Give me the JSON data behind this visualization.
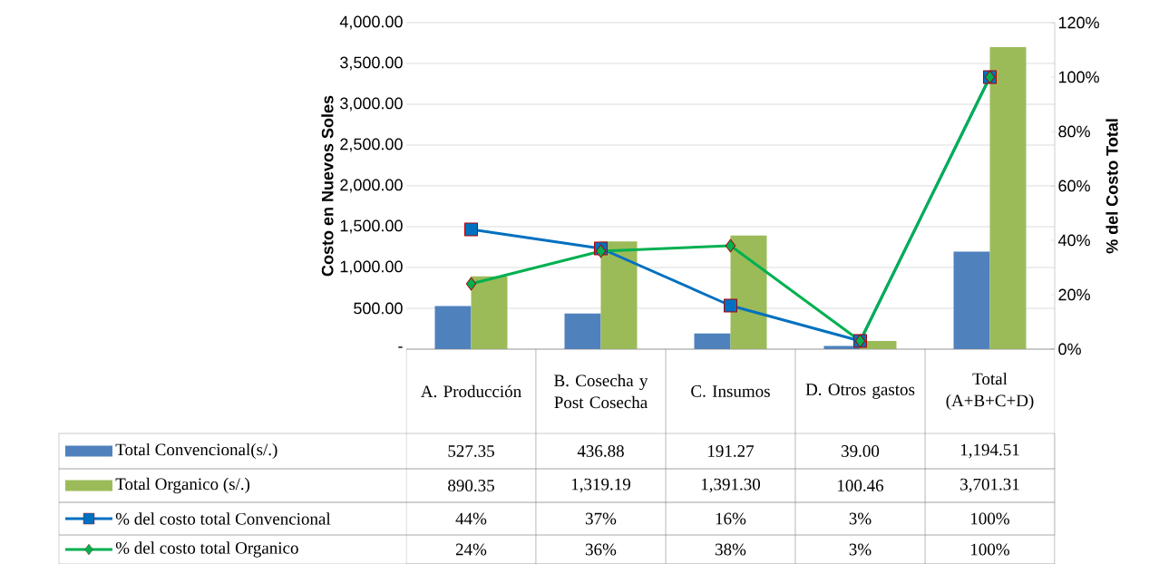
{
  "chart_data": {
    "type": "bar",
    "ylabel": "Costo en Nuevos Soles",
    "y2label": "% del Costo Total",
    "categories": [
      "A. Producción",
      "B. Cosecha y Post Cosecha",
      "C. Insumos",
      "D. Otros gastos",
      "Total (A+B+C+D)"
    ],
    "series": [
      {
        "name": "Total  Convencional(s/.)",
        "color": "#4f81bd",
        "values": [
          527.35,
          436.88,
          191.27,
          39.0,
          1194.51
        ],
        "value_labels": [
          "527.35",
          "436.88",
          "191.27",
          "39.00",
          "1,194.51"
        ]
      },
      {
        "name": "Total Organico  (s/.)",
        "color": "#9bbb59",
        "values": [
          890.35,
          1319.19,
          1391.3,
          100.46,
          3701.31
        ],
        "value_labels": [
          "890.35",
          "1,319.19",
          "1,391.30",
          "100.46",
          "3,701.31"
        ]
      },
      {
        "name": "% del costo total Convencional",
        "type": "line",
        "axis": "y2",
        "marker": "square",
        "color": "#0070c0",
        "values": [
          44,
          37,
          16,
          3,
          100
        ],
        "value_labels": [
          "44%",
          "37%",
          "16%",
          "3%",
          "100%"
        ]
      },
      {
        "name": "% del costo total Organico",
        "type": "line",
        "axis": "y2",
        "marker": "diamond",
        "color": "#00b050",
        "values": [
          24,
          36,
          38,
          3,
          100
        ],
        "value_labels": [
          "24%",
          "36%",
          "38%",
          "3%",
          "100%"
        ]
      }
    ],
    "ylim": [
      0,
      4000
    ],
    "yticks": [
      {
        "value": 0,
        "label": "-"
      },
      {
        "value": 500,
        "label": "500.00"
      },
      {
        "value": 1000,
        "label": "1,000.00"
      },
      {
        "value": 1500,
        "label": "1,500.00"
      },
      {
        "value": 2000,
        "label": "2,000.00"
      },
      {
        "value": 2500,
        "label": "2,500.00"
      },
      {
        "value": 3000,
        "label": "3,000.00"
      },
      {
        "value": 3500,
        "label": "3,500.00"
      },
      {
        "value": 4000,
        "label": "4,000.00"
      }
    ],
    "y2lim": [
      0,
      120
    ],
    "y2ticks": [
      {
        "value": 0,
        "label": "0%"
      },
      {
        "value": 20,
        "label": "20%"
      },
      {
        "value": 40,
        "label": "40%"
      },
      {
        "value": 60,
        "label": "60%"
      },
      {
        "value": 80,
        "label": "80%"
      },
      {
        "value": 100,
        "label": "100%"
      },
      {
        "value": 120,
        "label": "120%"
      }
    ],
    "grid": "y",
    "legend": "bottom",
    "line_style": "solid"
  }
}
